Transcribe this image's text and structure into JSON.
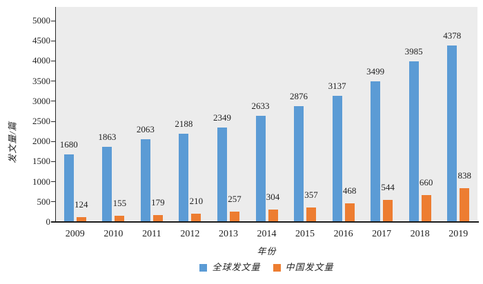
{
  "chart_data": {
    "type": "bar",
    "title": "",
    "categories": [
      "2009",
      "2010",
      "2011",
      "2012",
      "2013",
      "2014",
      "2015",
      "2016",
      "2017",
      "2018",
      "2019"
    ],
    "series": [
      {
        "name": "全球发文量",
        "color": "#5B9BD5",
        "values": [
          1680,
          1863,
          2063,
          2188,
          2349,
          2633,
          2876,
          3137,
          3499,
          3985,
          4378
        ]
      },
      {
        "name": "中国发文量",
        "color": "#ED7D31",
        "values": [
          124,
          155,
          179,
          210,
          257,
          304,
          357,
          468,
          544,
          660,
          838
        ]
      }
    ],
    "xlabel": "年份",
    "ylabel": "发文量/篇",
    "ylim": [
      0,
      5000
    ],
    "ytick_interval": 500,
    "yticks": [
      0,
      500,
      1000,
      1500,
      2000,
      2500,
      3000,
      3500,
      4000,
      4500,
      5000
    ],
    "grid": false,
    "value_labels": true,
    "legend_position": "bottom",
    "plot_background": "#ECECEC",
    "axis_color": "#262626",
    "text_color": "#1F1F1F"
  }
}
